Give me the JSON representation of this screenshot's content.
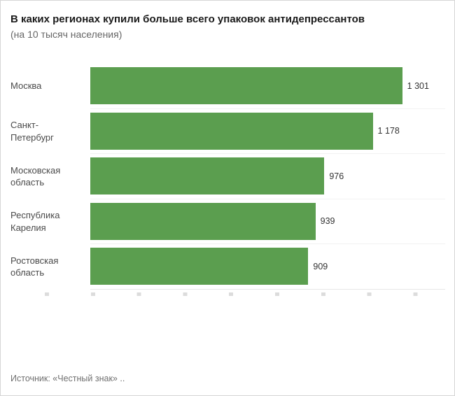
{
  "header": {
    "title": "В каких регионах купили больше всего упаковок антидепрессантов",
    "subtitle": "(на 10 тысяч населения)"
  },
  "chart_data": {
    "type": "bar",
    "orientation": "horizontal",
    "title": "В каких регионах купили больше всего упаковок антидепрессантов",
    "subtitle": "(на 10 тысяч населения)",
    "categories": [
      "Москва",
      "Санкт-Петербург",
      "Московская область",
      "Республика Карелия",
      "Ростовская область"
    ],
    "values": [
      1301,
      1178,
      976,
      939,
      909
    ],
    "value_labels": [
      "1 301",
      "1 178",
      "976",
      "939",
      "909"
    ],
    "xlim": [
      0,
      1480
    ],
    "bar_color": "#5b9e4f",
    "grid": false,
    "legend": "none"
  },
  "footer": {
    "source": "Источник: «Честный знак» .."
  }
}
